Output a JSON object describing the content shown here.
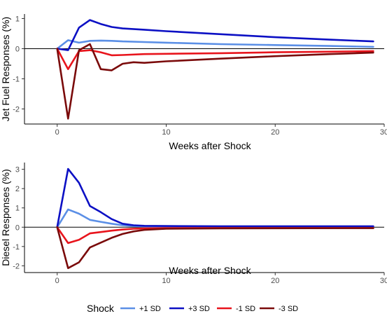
{
  "chart_data": [
    {
      "type": "line",
      "xlabel": "Weeks after Shock",
      "ylabel": "Jet Fuel Responses (%)",
      "xlim": [
        -3,
        30
      ],
      "ylim": [
        -2.5,
        1.15
      ],
      "x_ticks": [
        0,
        10,
        20,
        30
      ],
      "y_ticks": [
        -2,
        -1,
        0,
        1
      ],
      "x_tick_labels": [
        "0",
        "10",
        "20",
        "30"
      ],
      "y_tick_labels": [
        "-2",
        "-1",
        "0",
        "1"
      ],
      "zero_line": true,
      "grid": false,
      "series": [
        {
          "name": "+1 SD",
          "color": "#5b8fe6",
          "points": [
            [
              0,
              0
            ],
            [
              1,
              0.28
            ],
            [
              2,
              0.2
            ],
            [
              3,
              0.26
            ],
            [
              4,
              0.27
            ],
            [
              5,
              0.26
            ],
            [
              6,
              0.24
            ],
            [
              8,
              0.22
            ],
            [
              10,
              0.2
            ],
            [
              15,
              0.15
            ],
            [
              20,
              0.12
            ],
            [
              25,
              0.09
            ],
            [
              29,
              0.06
            ]
          ]
        },
        {
          "name": "+3 SD",
          "color": "#0c10c4",
          "points": [
            [
              0,
              0
            ],
            [
              1,
              -0.05
            ],
            [
              2,
              0.7
            ],
            [
              3,
              0.95
            ],
            [
              4,
              0.82
            ],
            [
              5,
              0.72
            ],
            [
              6,
              0.67
            ],
            [
              8,
              0.63
            ],
            [
              10,
              0.58
            ],
            [
              15,
              0.48
            ],
            [
              20,
              0.38
            ],
            [
              25,
              0.3
            ],
            [
              29,
              0.24
            ]
          ]
        },
        {
          "name": "-1 SD",
          "color": "#e8141c",
          "points": [
            [
              0,
              0
            ],
            [
              1,
              -0.68
            ],
            [
              2,
              -0.08
            ],
            [
              3,
              -0.05
            ],
            [
              4,
              -0.12
            ],
            [
              5,
              -0.22
            ],
            [
              6,
              -0.21
            ],
            [
              8,
              -0.18
            ],
            [
              10,
              -0.17
            ],
            [
              15,
              -0.15
            ],
            [
              20,
              -0.12
            ],
            [
              25,
              -0.1
            ],
            [
              29,
              -0.08
            ]
          ]
        },
        {
          "name": "-3 SD",
          "color": "#7a0a0a",
          "points": [
            [
              0,
              0
            ],
            [
              1,
              -2.32
            ],
            [
              2,
              -0.05
            ],
            [
              3,
              0.15
            ],
            [
              4,
              -0.68
            ],
            [
              5,
              -0.72
            ],
            [
              6,
              -0.5
            ],
            [
              7,
              -0.45
            ],
            [
              8,
              -0.47
            ],
            [
              10,
              -0.42
            ],
            [
              15,
              -0.33
            ],
            [
              20,
              -0.25
            ],
            [
              25,
              -0.18
            ],
            [
              29,
              -0.13
            ]
          ]
        }
      ]
    },
    {
      "type": "line",
      "xlabel": "Weeks after Shock",
      "ylabel": "Diesel Responses (%)",
      "xlim": [
        -3,
        30
      ],
      "ylim": [
        -2.35,
        3.35
      ],
      "x_ticks": [
        0,
        10,
        20,
        30
      ],
      "y_ticks": [
        -2,
        -1,
        0,
        1,
        2,
        3
      ],
      "x_tick_labels": [
        "0",
        "10",
        "20",
        "30"
      ],
      "y_tick_labels": [
        "-2",
        "-1",
        "0",
        "1",
        "2",
        "3"
      ],
      "zero_line": true,
      "grid": false,
      "series": [
        {
          "name": "+1 SD",
          "color": "#5b8fe6",
          "points": [
            [
              0,
              0
            ],
            [
              1,
              0.92
            ],
            [
              2,
              0.7
            ],
            [
              3,
              0.38
            ],
            [
              4,
              0.28
            ],
            [
              5,
              0.18
            ],
            [
              6,
              0.1
            ],
            [
              7,
              0.06
            ],
            [
              8,
              0.04
            ],
            [
              10,
              0.03
            ],
            [
              15,
              0.02
            ],
            [
              29,
              0.02
            ]
          ]
        },
        {
          "name": "+3 SD",
          "color": "#0c10c4",
          "points": [
            [
              0,
              0
            ],
            [
              1,
              3.02
            ],
            [
              2,
              2.3
            ],
            [
              3,
              1.1
            ],
            [
              4,
              0.78
            ],
            [
              5,
              0.42
            ],
            [
              6,
              0.18
            ],
            [
              7,
              0.1
            ],
            [
              8,
              0.07
            ],
            [
              10,
              0.06
            ],
            [
              15,
              0.05
            ],
            [
              29,
              0.05
            ]
          ]
        },
        {
          "name": "-1 SD",
          "color": "#e8141c",
          "points": [
            [
              0,
              0
            ],
            [
              1,
              -0.82
            ],
            [
              2,
              -0.65
            ],
            [
              3,
              -0.32
            ],
            [
              4,
              -0.25
            ],
            [
              5,
              -0.18
            ],
            [
              6,
              -0.12
            ],
            [
              7,
              -0.08
            ],
            [
              8,
              -0.06
            ],
            [
              10,
              -0.05
            ],
            [
              15,
              -0.04
            ],
            [
              29,
              -0.04
            ]
          ]
        },
        {
          "name": "-3 SD",
          "color": "#7a0a0a",
          "points": [
            [
              0,
              0
            ],
            [
              1,
              -2.12
            ],
            [
              2,
              -1.82
            ],
            [
              3,
              -1.05
            ],
            [
              4,
              -0.8
            ],
            [
              5,
              -0.55
            ],
            [
              6,
              -0.35
            ],
            [
              7,
              -0.22
            ],
            [
              8,
              -0.14
            ],
            [
              10,
              -0.08
            ],
            [
              15,
              -0.06
            ],
            [
              29,
              -0.05
            ]
          ]
        }
      ]
    }
  ],
  "legend": {
    "title": "Shock",
    "placement": "bottom",
    "items": [
      {
        "label": "+1 SD",
        "color": "#5b8fe6"
      },
      {
        "label": "+3 SD",
        "color": "#0c10c4"
      },
      {
        "label": "-1 SD",
        "color": "#e8141c"
      },
      {
        "label": "-3 SD",
        "color": "#7a0a0a"
      }
    ]
  }
}
